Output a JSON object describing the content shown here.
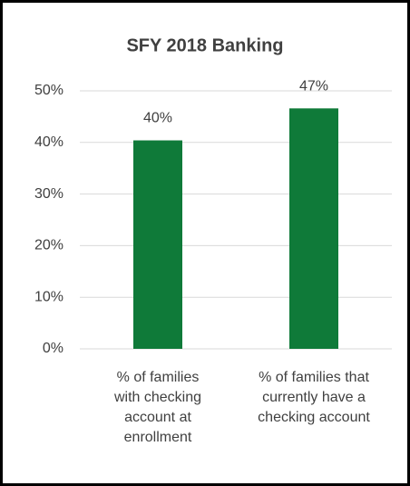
{
  "chart_data": {
    "type": "bar",
    "title": "SFY 2018 Banking",
    "categories": [
      "% of families with checking account at enrollment",
      "% of families that currently have a checking account"
    ],
    "values": [
      40.4,
      46.6
    ],
    "value_labels": [
      "40%",
      "47%"
    ],
    "color": "#0f7a39",
    "ylim": [
      0,
      50
    ],
    "yticks": [
      {
        "value": 0,
        "label": "0%"
      },
      {
        "value": 10,
        "label": "10%"
      },
      {
        "value": 20,
        "label": "20%"
      },
      {
        "value": 30,
        "label": "30%"
      },
      {
        "value": 40,
        "label": "40%"
      },
      {
        "value": 50,
        "label": "50%"
      }
    ],
    "grid": true
  }
}
